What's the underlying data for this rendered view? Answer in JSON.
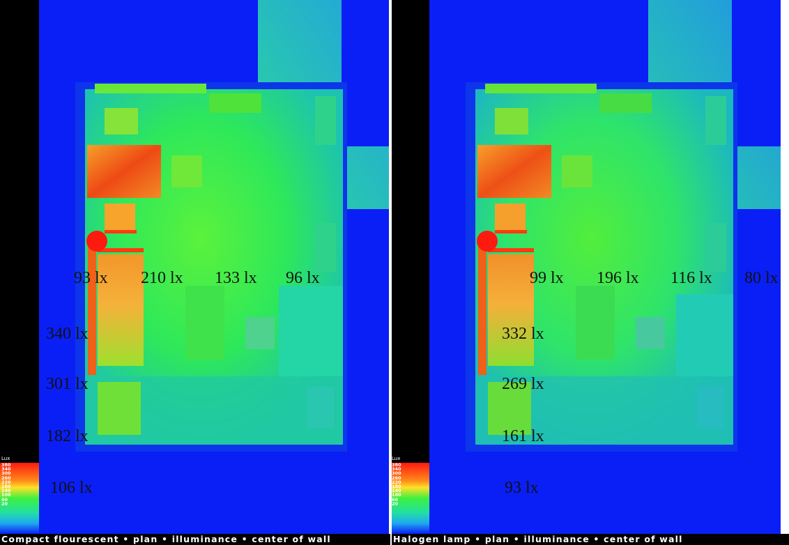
{
  "panels": [
    {
      "caption": "Compact flourescent • plan • illuminance • center of wall",
      "labels": [
        "93 lx",
        "210 lx",
        "133 lx",
        "96 lx",
        "340 lx",
        "301 lx",
        "182 lx",
        "106 lx"
      ]
    },
    {
      "caption": "Halogen lamp • plan • illuminance • center of wall",
      "labels": [
        "99 lx",
        "196 lx",
        "116 lx",
        "80 lx",
        "332 lx",
        "269 lx",
        "161 lx",
        "93 lx"
      ]
    }
  ],
  "legend": {
    "title": "Lux",
    "ticks": [
      "380",
      "340",
      "300",
      "260",
      "220",
      "180",
      "140",
      "100",
      "60",
      "20"
    ]
  },
  "colors": {
    "background_blue": "#0a1ff5",
    "green": "#2fe83a",
    "orange": "#f07a1a",
    "red": "#ff1a10",
    "black": "#000000"
  }
}
